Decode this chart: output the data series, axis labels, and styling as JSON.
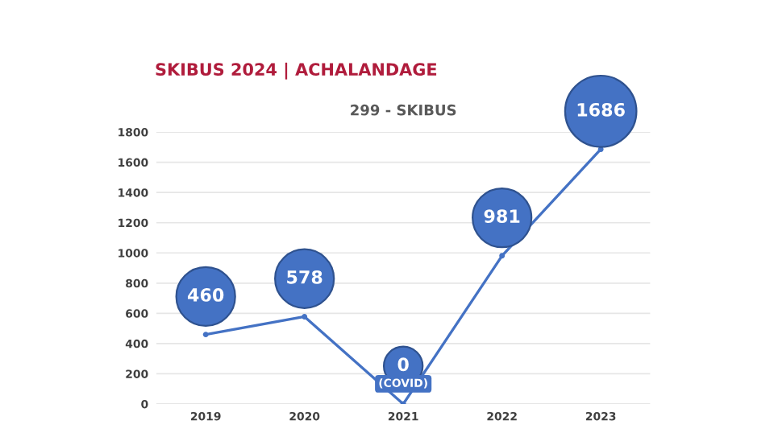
{
  "chart_data": {
    "type": "line",
    "title": "SKIBUS 2024 | ACHALANDAGE",
    "subtitle": "299 - SKIBUS",
    "categories": [
      "2019",
      "2020",
      "2021",
      "2022",
      "2023"
    ],
    "series": [
      {
        "color": "#4472c4",
        "values": [
          460,
          578,
          0,
          981,
          1686
        ]
      }
    ],
    "ylim": [
      0,
      1800
    ],
    "yticks": [
      0,
      200,
      400,
      600,
      800,
      1000,
      1200,
      1400,
      1600,
      1800
    ],
    "grid": "y",
    "marker": "circle",
    "line_style": "solid",
    "data_labels": true,
    "annotations": [
      {
        "text": "(COVID)",
        "x": "2021",
        "y": 0
      }
    ]
  }
}
